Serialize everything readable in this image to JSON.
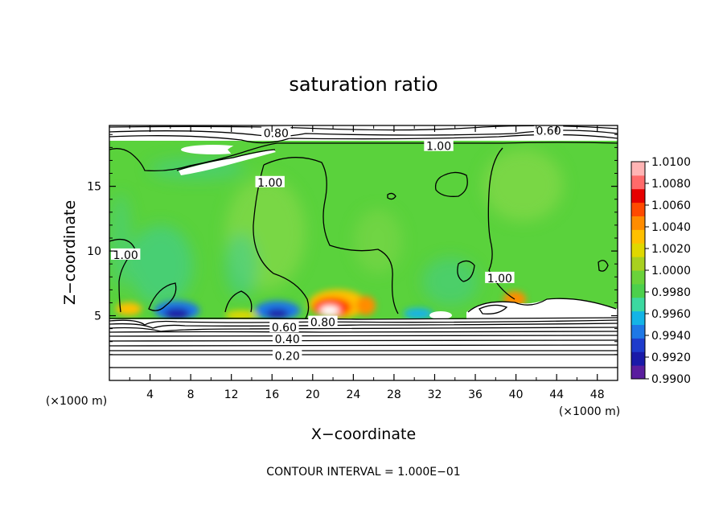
{
  "chart_data": {
    "type": "heatmap",
    "title": "saturation ratio",
    "xlabel": "X−coordinate",
    "ylabel": "Z−coordinate",
    "x_unit_left": "(×1000 m)",
    "x_unit_right": "(×1000 m)",
    "xlim": [
      0,
      50
    ],
    "ylim": [
      0,
      19.7
    ],
    "x_ticks": [
      4,
      8,
      12,
      16,
      20,
      24,
      28,
      32,
      36,
      40,
      44,
      48
    ],
    "y_ticks": [
      5,
      10,
      15
    ],
    "grid": false,
    "footer": "CONTOUR INTERVAL = 1.000E−01",
    "colorbar": {
      "min": 0.99,
      "max": 1.01,
      "tick_labels": [
        "1.0100",
        "1.0080",
        "1.0060",
        "1.0040",
        "1.0020",
        "1.0000",
        "0.9980",
        "0.9960",
        "0.9940",
        "0.9920",
        "0.9900"
      ],
      "colors": [
        "#5a1e9e",
        "#1a1aa8",
        "#1e3ccc",
        "#1e78e6",
        "#14b4e6",
        "#3cd8a0",
        "#4cd04c",
        "#6ad23a",
        "#a8d020",
        "#e0d800",
        "#ffc000",
        "#ff8c00",
        "#ff4a00",
        "#e60000",
        "#ff6a6a",
        "#ffb4b4"
      ]
    },
    "contour_labels": [
      {
        "text": "0.80",
        "x": 16.4,
        "z": 19.1
      },
      {
        "text": "0.60",
        "x": 43.2,
        "z": 19.3
      },
      {
        "text": "1.00",
        "x": 32.4,
        "z": 18.1
      },
      {
        "text": "1.00",
        "x": 15.8,
        "z": 15.3
      },
      {
        "text": "1.00",
        "x": 1.6,
        "z": 9.7
      },
      {
        "text": "1.00",
        "x": 38.4,
        "z": 7.9
      },
      {
        "text": "0.80",
        "x": 21.0,
        "z": 4.5
      },
      {
        "text": "0.60",
        "x": 17.2,
        "z": 4.1
      },
      {
        "text": "0.40",
        "x": 17.5,
        "z": 3.2
      },
      {
        "text": "0.20",
        "x": 17.5,
        "z": 1.9
      }
    ]
  }
}
